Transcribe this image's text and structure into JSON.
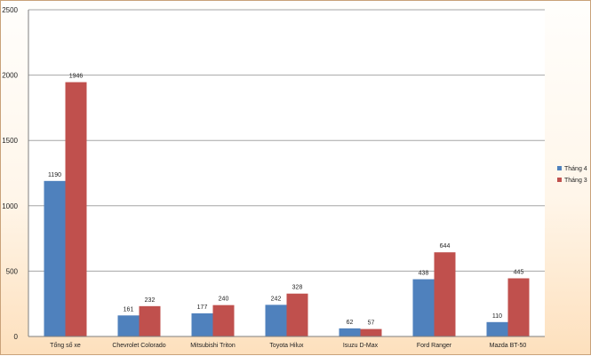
{
  "chart_data": {
    "type": "bar",
    "categories": [
      "Tổng số xe",
      "Chevrolet Colorado",
      "Mitsubishi Triton",
      "Toyota Hilux",
      "Isuzu D-Max",
      "Ford Ranger",
      "Mazda BT-50"
    ],
    "series": [
      {
        "name": "Tháng 4",
        "values": [
          1190,
          161,
          177,
          242,
          62,
          438,
          110
        ],
        "color": "#4f81bd"
      },
      {
        "name": "Tháng 3",
        "values": [
          1946,
          232,
          240,
          328,
          57,
          644,
          445
        ],
        "color": "#c0504d"
      }
    ],
    "ylim": [
      0,
      2500
    ],
    "yticks": [
      0,
      500,
      1000,
      1500,
      2000,
      2500
    ],
    "grid": true,
    "legend_position": "right",
    "title": "",
    "xlabel": "",
    "ylabel": ""
  },
  "colors": {
    "gridline": "#a6a6a6",
    "plot_background": "#ffffff",
    "frame_gradient_bottom": "#fde0bd"
  }
}
